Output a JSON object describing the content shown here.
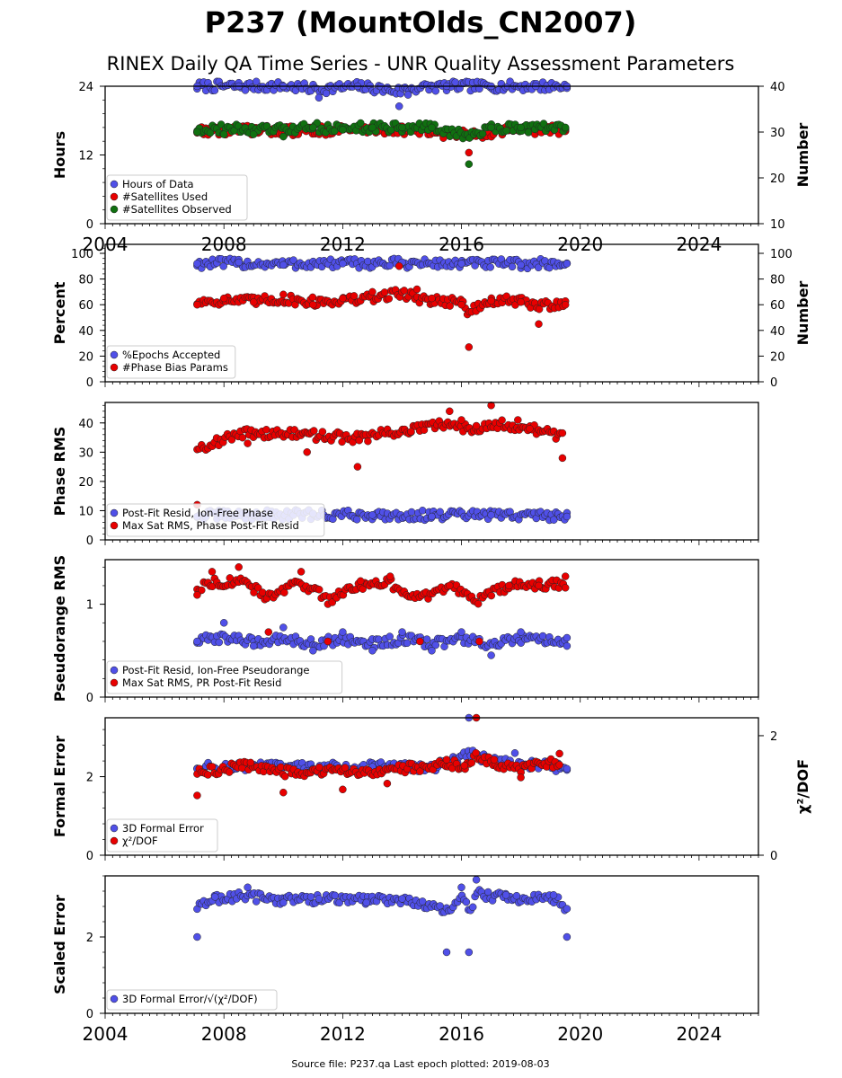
{
  "title": "P237 (MountOlds_CN2007)",
  "subtitle": "RINEX Daily QA Time Series - UNR Quality Assessment Parameters",
  "footer": "Source file: P237.qa Last epoch plotted: 2019-08-03",
  "chart_data": [
    {
      "type": "scatter",
      "ylabel": "Hours",
      "ylabel_right": "Number",
      "ylim": [
        0,
        24
      ],
      "ylim_right": [
        10,
        40
      ],
      "yticks": [
        "0",
        "12",
        "24"
      ],
      "yticks_right": [
        "10",
        "20",
        "30",
        "40"
      ],
      "xlim": [
        2004,
        2026
      ],
      "xticks": [
        "2004",
        "2008",
        "2012",
        "2016",
        "2020",
        "2024"
      ],
      "legend_position": "lower-left",
      "series": [
        {
          "name": "Hours of Data",
          "color": "#5050e8",
          "axis": "left",
          "x": [
            2007.1,
            2008.5,
            2010,
            2011.2,
            2012.5,
            2013.9,
            2014.2,
            2015.5,
            2017,
            2018.5,
            2019.55
          ],
          "y": [
            24,
            24,
            24,
            22,
            24,
            20.5,
            22.5,
            24,
            24,
            24,
            24
          ]
        },
        {
          "name": "#Satellites Used",
          "color": "#e80000",
          "axis": "right",
          "x": [
            2007.1,
            2009.2,
            2010.5,
            2012,
            2014,
            2016.25,
            2017.5,
            2019.5
          ],
          "y": [
            30,
            30,
            29.5,
            30.5,
            30.5,
            25.5,
            30.5,
            30.5
          ]
        },
        {
          "name": "#Satellites Observed",
          "color": "#107010",
          "axis": "right",
          "x": [
            2007.1,
            2008,
            2009,
            2010,
            2011,
            2012,
            2013,
            2014,
            2015,
            2016.25,
            2017,
            2018,
            2019.5
          ],
          "y": [
            30,
            29.5,
            29.5,
            29,
            31,
            30.5,
            31,
            31,
            31,
            23,
            31,
            31,
            31
          ]
        }
      ]
    },
    {
      "type": "scatter",
      "ylabel": "Percent",
      "ylabel_right": "Number",
      "ylim": [
        0,
        107
      ],
      "ylim_right": [
        0,
        107
      ],
      "yticks": [
        "0",
        "20",
        "40",
        "60",
        "80",
        "100"
      ],
      "yticks_right": [
        "0",
        "20",
        "40",
        "60",
        "80",
        "100"
      ],
      "xlim": [
        2004,
        2026
      ],
      "legend_position": "lower-left",
      "series": [
        {
          "name": "%Epochs Accepted",
          "color": "#5050e8",
          "axis": "left",
          "x": [
            2007.1,
            2008.5,
            2010,
            2012,
            2014,
            2016,
            2018,
            2019.55
          ],
          "y": [
            92,
            93,
            91,
            92,
            93,
            92,
            91,
            92
          ]
        },
        {
          "name": "#Phase Bias Params",
          "color": "#e80000",
          "axis": "right",
          "x": [
            2007.1,
            2008,
            2009,
            2010,
            2011,
            2012,
            2013,
            2013.9,
            2014.5,
            2015,
            2016,
            2016.25,
            2017,
            2018,
            2018.6,
            2019.5
          ],
          "y": [
            60,
            65,
            62,
            68,
            60,
            65,
            70,
            90,
            72,
            65,
            60,
            27,
            63,
            62,
            45,
            60
          ]
        }
      ]
    },
    {
      "type": "scatter",
      "ylabel": "Phase RMS",
      "ylim": [
        0,
        47
      ],
      "yticks": [
        "0",
        "10",
        "20",
        "30",
        "40"
      ],
      "xlim": [
        2004,
        2026
      ],
      "legend_position": "lower-left",
      "series": [
        {
          "name": "Post-Fit Resid, Ion-Free Phase",
          "color": "#5050e8",
          "x": [
            2007.1,
            2009,
            2011,
            2013,
            2015,
            2017,
            2019.55
          ],
          "y": [
            8,
            8.5,
            9,
            8.5,
            8,
            8.5,
            8
          ]
        },
        {
          "name": "Max Sat RMS, Phase Post-Fit Resid",
          "color": "#e80000",
          "x": [
            2007.1,
            2008.8,
            2010.8,
            2012.5,
            2014.3,
            2015.6,
            2016,
            2016.5,
            2017,
            2017.9,
            2018.3,
            2019.4
          ],
          "y": [
            12,
            33,
            30,
            25,
            37,
            44,
            41,
            39,
            46,
            41,
            38,
            28
          ]
        }
      ]
    },
    {
      "type": "scatter",
      "ylabel": "Pseudorange RMS",
      "ylim": [
        0,
        1.48
      ],
      "yticks": [
        "0",
        "1"
      ],
      "xlim": [
        2004,
        2026
      ],
      "legend_position": "lower-left",
      "series": [
        {
          "name": "Post-Fit Resid, Ion-Free Pseudorange",
          "color": "#5050e8",
          "x": [
            2007.1,
            2008,
            2009,
            2010,
            2011,
            2012,
            2013,
            2014,
            2015,
            2016,
            2017,
            2018,
            2019.55
          ],
          "y": [
            0.6,
            0.8,
            0.55,
            0.75,
            0.5,
            0.7,
            0.5,
            0.7,
            0.5,
            0.7,
            0.45,
            0.7,
            0.55
          ]
        },
        {
          "name": "Max Sat RMS, PR Post-Fit Resid",
          "color": "#e80000",
          "x": [
            2007.1,
            2007.6,
            2008.5,
            2009.5,
            2010.6,
            2011.5,
            2012.6,
            2013.6,
            2014.6,
            2015.6,
            2016.6,
            2017.6,
            2018.6,
            2019.5
          ],
          "y": [
            1.1,
            1.35,
            1.4,
            0.7,
            1.35,
            0.6,
            1.25,
            1.3,
            0.6,
            1.2,
            0.6,
            1.2,
            1.2,
            1.3
          ]
        }
      ]
    },
    {
      "type": "scatter",
      "ylabel": "Formal Error",
      "ylabel_right": "χ²/DOF",
      "ylim": [
        0,
        3.5
      ],
      "ylim_right": [
        0,
        2.3
      ],
      "yticks": [
        "0",
        "2"
      ],
      "yticks_right": [
        "0",
        "2"
      ],
      "xlim": [
        2004,
        2026
      ],
      "legend_position": "lower-left",
      "series": [
        {
          "name": "3D Formal Error",
          "color": "#5050e8",
          "axis": "left",
          "x": [
            2007.1,
            2009,
            2011,
            2013,
            2015,
            2016.25,
            2017.8,
            2019.55
          ],
          "y": [
            2.2,
            2.25,
            2.2,
            2.25,
            2.2,
            3.5,
            2.6,
            2.2
          ]
        },
        {
          "name": "χ²/DOF",
          "color": "#e80000",
          "axis": "right",
          "x": [
            2007.1,
            2008.9,
            2010,
            2012,
            2013.5,
            2015.5,
            2016.1,
            2016.5,
            2017.1,
            2018,
            2019.3
          ],
          "y": [
            1,
            1.55,
            1.05,
            1.1,
            1.2,
            1.6,
            1.5,
            2.3,
            1.6,
            1.3,
            1.7
          ]
        }
      ]
    },
    {
      "type": "scatter",
      "ylabel": "Scaled Error",
      "ylim": [
        0,
        3.6
      ],
      "yticks": [
        "0",
        "2"
      ],
      "xlim": [
        2004,
        2026
      ],
      "xticks": [
        "2004",
        "2008",
        "2012",
        "2016",
        "2020",
        "2024"
      ],
      "legend_position": "lower-left",
      "series": [
        {
          "name": "3D Formal Error/√(χ²/DOF)",
          "color": "#5050e8",
          "x": [
            2007.1,
            2007.7,
            2008.8,
            2010,
            2011.2,
            2012.8,
            2014,
            2015.5,
            2016,
            2016.25,
            2016.5,
            2017.5,
            2019.1,
            2019.55
          ],
          "y": [
            2,
            3.05,
            3.3,
            2.9,
            3.0,
            2.9,
            3.0,
            1.6,
            3.3,
            1.6,
            3.5,
            3.1,
            3.1,
            2
          ]
        }
      ]
    }
  ]
}
